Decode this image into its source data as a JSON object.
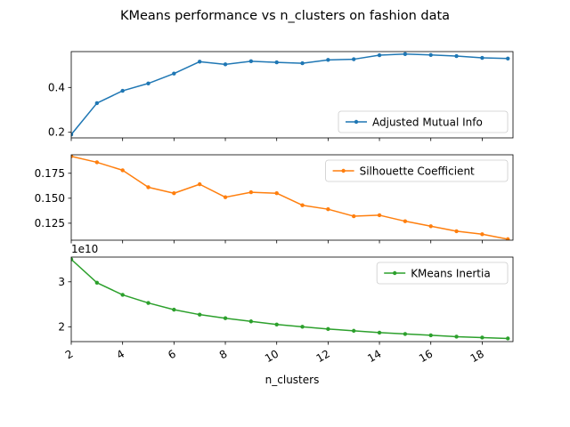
{
  "figure": {
    "title": "KMeans performance vs n_clusters on fashion data"
  },
  "chart_data": [
    {
      "type": "line",
      "x": [
        2,
        3,
        4,
        5,
        6,
        7,
        8,
        9,
        10,
        11,
        12,
        13,
        14,
        15,
        16,
        17,
        18,
        19
      ],
      "series": [
        {
          "name": "Adjusted Mutual Info",
          "color": "#1f77b4",
          "values": [
            0.19,
            0.33,
            0.385,
            0.418,
            0.462,
            0.515,
            0.503,
            0.517,
            0.512,
            0.508,
            0.523,
            0.526,
            0.544,
            0.549,
            0.545,
            0.54,
            0.532,
            0.529
          ]
        }
      ],
      "xlim": [
        2,
        19.2
      ],
      "ylim": [
        0.175,
        0.56
      ],
      "yticks": [
        0.2,
        0.4
      ],
      "ytick_labels": [
        "0.2",
        "0.4"
      ],
      "legend_placement": "lower right",
      "grid": false
    },
    {
      "type": "line",
      "x": [
        2,
        3,
        4,
        5,
        6,
        7,
        8,
        9,
        10,
        11,
        12,
        13,
        14,
        15,
        16,
        17,
        18,
        19
      ],
      "series": [
        {
          "name": "Silhouette Coefficient",
          "color": "#ff7f0e",
          "values": [
            0.192,
            0.186,
            0.178,
            0.161,
            0.155,
            0.164,
            0.151,
            0.156,
            0.155,
            0.143,
            0.139,
            0.132,
            0.133,
            0.127,
            0.122,
            0.117,
            0.114,
            0.109
          ]
        }
      ],
      "xlim": [
        2,
        19.2
      ],
      "ylim": [
        0.108,
        0.1935
      ],
      "yticks": [
        0.125,
        0.15,
        0.175
      ],
      "ytick_labels": [
        "0.125",
        "0.150",
        "0.175"
      ],
      "legend_placement": "upper right",
      "grid": false
    },
    {
      "type": "line",
      "x": [
        2,
        3,
        4,
        5,
        6,
        7,
        8,
        9,
        10,
        11,
        12,
        13,
        14,
        15,
        16,
        17,
        18,
        19
      ],
      "series": [
        {
          "name": "KMeans Inertia",
          "color": "#2ca02c",
          "values": [
            35000000000.0,
            29800000000.0,
            27100000000.0,
            25300000000.0,
            23800000000.0,
            22700000000.0,
            21900000000.0,
            21200000000.0,
            20500000000.0,
            20000000000.0,
            19500000000.0,
            19100000000.0,
            18700000000.0,
            18400000000.0,
            18100000000.0,
            17800000000.0,
            17600000000.0,
            17400000000.0
          ]
        }
      ],
      "xlim": [
        2,
        19.2
      ],
      "ylim": [
        16700000000.0,
        35500000000.0
      ],
      "yticks": [
        20000000000.0,
        30000000000.0
      ],
      "ytick_labels": [
        "2",
        "3"
      ],
      "offset_label": "1e10",
      "legend_placement": "upper right",
      "grid": false
    }
  ],
  "x_axis": {
    "label": "n_clusters",
    "ticks": [
      2,
      4,
      6,
      8,
      10,
      12,
      14,
      16,
      18
    ],
    "tick_labels": [
      "2",
      "4",
      "6",
      "8",
      "10",
      "12",
      "14",
      "16",
      "18"
    ],
    "tick_rotation_deg": 30
  }
}
